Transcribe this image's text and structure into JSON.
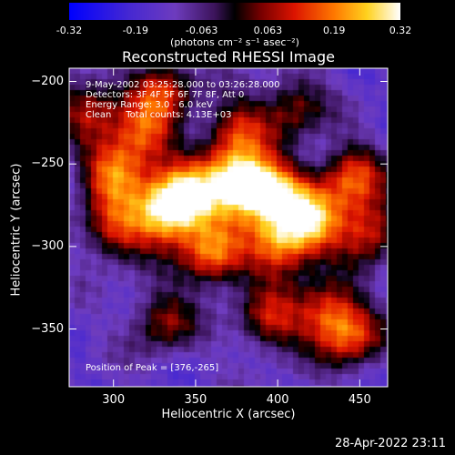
{
  "chart_data": {
    "type": "heatmap",
    "title": "Reconstructed RHESSI Image",
    "xlabel": "Heliocentric X (arcsec)",
    "ylabel": "Heliocentric Y (arcsec)",
    "xlim": [
      273,
      467
    ],
    "ylim": [
      -385,
      -192
    ],
    "x_ticks": [
      300,
      350,
      400,
      450
    ],
    "y_ticks": [
      -200,
      -250,
      -300,
      -350
    ],
    "colorbar": {
      "ticks": [
        "-0.32",
        "-0.19",
        "-0.063",
        "0.063",
        "0.19",
        "0.32"
      ],
      "range": [
        -0.32,
        0.32
      ],
      "units_label": "(photons cm⁻² s⁻¹ asec⁻²)"
    },
    "annotations": [
      "9-May-2002 03:25:28.000 to 03:26:28.000",
      "Detectors: 3F 4F 5F 6F 7F 8F, Att 0",
      "Energy Range: 3.0 - 6.0 keV",
      "Clean     Total counts: 4.13E+03"
    ],
    "peak_label": "Position of Peak = [376,-265]",
    "blobs": [
      {
        "x": 376,
        "y": -262,
        "value": 0.32
      },
      {
        "x": 345,
        "y": -270,
        "value": 0.24
      },
      {
        "x": 330,
        "y": -280,
        "value": 0.2
      },
      {
        "x": 398,
        "y": -268,
        "value": 0.22
      },
      {
        "x": 420,
        "y": -285,
        "value": 0.2
      },
      {
        "x": 300,
        "y": -255,
        "value": 0.16
      },
      {
        "x": 318,
        "y": -233,
        "value": 0.12
      },
      {
        "x": 330,
        "y": -205,
        "value": 0.1
      },
      {
        "x": 375,
        "y": -230,
        "value": 0.1
      },
      {
        "x": 360,
        "y": -305,
        "value": 0.18
      },
      {
        "x": 400,
        "y": -300,
        "value": 0.16
      },
      {
        "x": 445,
        "y": -258,
        "value": 0.14
      },
      {
        "x": 455,
        "y": -290,
        "value": 0.12
      },
      {
        "x": 300,
        "y": -290,
        "value": 0.1
      },
      {
        "x": 430,
        "y": -340,
        "value": 0.12
      },
      {
        "x": 445,
        "y": -355,
        "value": 0.1
      },
      {
        "x": 330,
        "y": -345,
        "value": 0.06
      },
      {
        "x": 395,
        "y": -345,
        "value": 0.08
      },
      {
        "x": 285,
        "y": -215,
        "value": 0.08
      },
      {
        "x": 410,
        "y": -215,
        "value": 0.06
      }
    ]
  },
  "timestamp": "28-Apr-2022 23:11"
}
